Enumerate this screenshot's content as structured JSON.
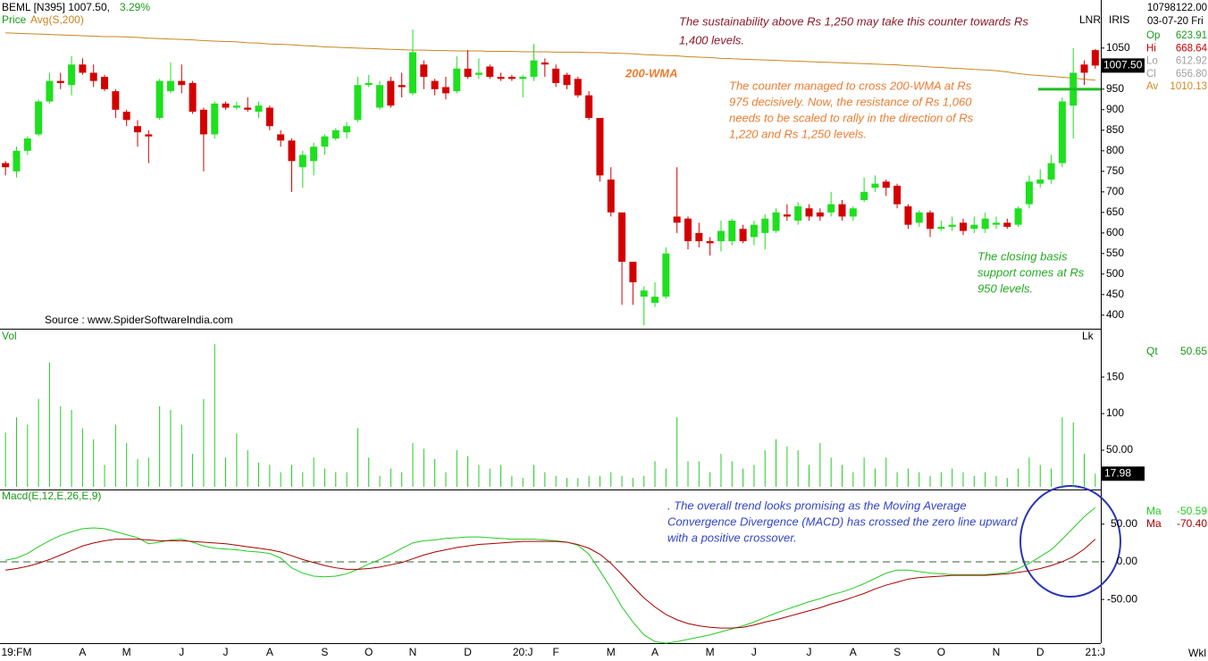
{
  "toolbar": [
    "LNR",
    "IRIS"
  ],
  "info": {
    "quantity": {
      "value": 10798122,
      "label": "10798122.00"
    },
    "date": "03-07-20 Fri",
    "fields": [
      {
        "label": "Op",
        "value": 623.91,
        "color": "#1a9a1a"
      },
      {
        "label": "Hi",
        "value": 668.64,
        "color": "#cc0000"
      },
      {
        "label": "Lo",
        "value": 612.92,
        "color": "#a0a0a0"
      },
      {
        "label": "Cl",
        "value": 656.8,
        "value_label": "656.80",
        "color": "#a0a0a0"
      },
      {
        "label": "Av",
        "value": 1010.13,
        "color": "#d08a20"
      }
    ]
  },
  "chart_data": [
    {
      "type": "candlestick",
      "title": "BEML [N395] 1007.50,",
      "change": "3.29%",
      "legend_label": "Price",
      "up_color": "#1ee01e",
      "down_color": "#d40000",
      "open": [
        770,
        750,
        800,
        840,
        920,
        970,
        960,
        1010,
        990,
        980,
        945,
        895,
        860,
        840,
        880,
        945,
        970,
        965,
        900,
        840,
        915,
        905,
        905,
        895,
        905,
        840,
        825,
        760,
        775,
        810,
        830,
        845,
        875,
        960,
        905,
        970,
        960,
        940,
        1010,
        970,
        955,
        945,
        1000,
        985,
        1005,
        980,
        980,
        975,
        980,
        1015,
        1000,
        985,
        975,
        935,
        880,
        730,
        650,
        530,
        445,
        430,
        445,
        640,
        635,
        600,
        580,
        580,
        580,
        610,
        590,
        600,
        605,
        645,
        630,
        660,
        650,
        650,
        670,
        640,
        680,
        710,
        725,
        715,
        665,
        625,
        650,
        610,
        615,
        625,
        610,
        610,
        620,
        625,
        620,
        670,
        720,
        730,
        770,
        910,
        1010,
        1045
      ],
      "high": [
        775,
        810,
        835,
        925,
        990,
        990,
        1030,
        1025,
        1010,
        985,
        950,
        900,
        875,
        850,
        975,
        1015,
        1010,
        970,
        905,
        920,
        920,
        920,
        930,
        920,
        910,
        850,
        830,
        800,
        820,
        840,
        855,
        870,
        980,
        985,
        970,
        980,
        990,
        1095,
        1020,
        975,
        980,
        1030,
        1045,
        1025,
        1010,
        990,
        985,
        985,
        1060,
        1025,
        1010,
        990,
        980,
        945,
        880,
        760,
        650,
        530,
        470,
        480,
        565,
        760,
        640,
        625,
        590,
        630,
        635,
        620,
        630,
        645,
        660,
        670,
        675,
        670,
        660,
        700,
        680,
        665,
        735,
        740,
        730,
        720,
        670,
        655,
        655,
        630,
        640,
        635,
        640,
        650,
        640,
        635,
        665,
        740,
        755,
        790,
        930,
        1050,
        1020,
        1048
      ],
      "low": [
        740,
        735,
        790,
        835,
        915,
        950,
        935,
        985,
        955,
        945,
        880,
        860,
        810,
        770,
        875,
        940,
        940,
        890,
        750,
        830,
        900,
        900,
        895,
        880,
        850,
        810,
        700,
        710,
        740,
        790,
        825,
        830,
        870,
        955,
        900,
        905,
        930,
        935,
        950,
        935,
        925,
        940,
        975,
        975,
        975,
        970,
        970,
        930,
        970,
        980,
        955,
        950,
        930,
        875,
        725,
        640,
        425,
        425,
        375,
        420,
        440,
        600,
        560,
        565,
        545,
        555,
        570,
        575,
        570,
        560,
        600,
        630,
        620,
        630,
        630,
        640,
        630,
        630,
        675,
        700,
        690,
        660,
        610,
        615,
        590,
        605,
        605,
        595,
        600,
        600,
        610,
        610,
        615,
        660,
        710,
        720,
        760,
        830,
        960,
        1000
      ],
      "close": [
        760,
        800,
        830,
        920,
        970,
        965,
        1010,
        990,
        970,
        950,
        900,
        875,
        845,
        835,
        970,
        970,
        960,
        895,
        840,
        915,
        905,
        910,
        900,
        910,
        860,
        825,
        775,
        790,
        810,
        835,
        850,
        860,
        960,
        965,
        960,
        910,
        955,
        1040,
        980,
        950,
        940,
        1000,
        980,
        990,
        980,
        975,
        975,
        980,
        1020,
        1010,
        965,
        960,
        935,
        880,
        740,
        650,
        530,
        480,
        460,
        445,
        550,
        625,
        580,
        580,
        575,
        605,
        630,
        580,
        620,
        635,
        650,
        640,
        665,
        640,
        640,
        670,
        640,
        660,
        700,
        720,
        710,
        670,
        620,
        650,
        610,
        615,
        620,
        605,
        620,
        635,
        625,
        615,
        660,
        725,
        730,
        770,
        920,
        990,
        990,
        1007.5
      ],
      "series": [
        {
          "name": "Avg(S,200)",
          "color": "#c8861e",
          "values": [
            1087,
            1086,
            1085,
            1084,
            1083,
            1082,
            1081,
            1080,
            1079,
            1078,
            1078,
            1077,
            1076,
            1074,
            1073,
            1072,
            1071,
            1070,
            1068,
            1067,
            1066,
            1065,
            1063,
            1062,
            1060,
            1059,
            1058,
            1056,
            1055,
            1053,
            1052,
            1051,
            1050,
            1049,
            1048,
            1047,
            1046,
            1045,
            1045,
            1044,
            1044,
            1043,
            1043,
            1043,
            1042,
            1042,
            1042,
            1041,
            1041,
            1041,
            1040,
            1040,
            1040,
            1039,
            1039,
            1038,
            1037,
            1036,
            1034,
            1033,
            1032,
            1031,
            1029,
            1028,
            1027,
            1025,
            1024,
            1023,
            1022,
            1021,
            1020,
            1019,
            1018,
            1017,
            1016,
            1015,
            1014,
            1013,
            1012,
            1011,
            1010,
            1009,
            1007,
            1006,
            1004,
            1003,
            1001,
            1000,
            998,
            997,
            995,
            992,
            988,
            985,
            983,
            981,
            979,
            977,
            974,
            972
          ]
        }
      ],
      "ylim": [
        367,
        1167
      ],
      "yticks": [
        400,
        450,
        500,
        550,
        600,
        650,
        700,
        750,
        800,
        850,
        900,
        950,
        1000,
        1050
      ],
      "last_price": {
        "value": 1007.5,
        "label": "1007.50"
      },
      "support_level": 950,
      "support_color": "#22bb22",
      "wma_label": "200-WMA",
      "source": "Source : www.SpiderSoftwareIndia.com",
      "annotations": [
        {
          "color": "#8b1a2a",
          "lines": [
            "The sustainability above Rs 1,250 may take this counter towards Rs",
            "1,400 levels."
          ]
        },
        {
          "color": "#ec7c30",
          "lines": [
            "The counter managed to cross 200-WMA at Rs",
            "975 decisively. Now, the resistance of Rs 1,060",
            "needs to be scaled to rally in the direction of Rs",
            "1,220 and Rs 1,250 levels."
          ]
        },
        {
          "color": "#22aa22",
          "lines": [
            "The closing basis",
            "support comes at Rs",
            "950 levels."
          ]
        }
      ]
    },
    {
      "type": "bar",
      "label": "Vol",
      "corner_label": "Lk",
      "color": "#22cc22",
      "values": [
        74,
        95,
        85,
        120,
        170,
        110,
        105,
        80,
        65,
        30,
        85,
        60,
        38,
        40,
        110,
        105,
        85,
        45,
        120,
        195,
        40,
        73,
        50,
        33,
        30,
        20,
        30,
        20,
        40,
        25,
        20,
        20,
        80,
        40,
        15,
        25,
        20,
        60,
        52,
        38,
        20,
        50,
        42,
        30,
        25,
        30,
        15,
        12,
        30,
        20,
        15,
        12,
        12,
        15,
        15,
        20,
        15,
        12,
        15,
        35,
        25,
        95,
        35,
        35,
        20,
        45,
        35,
        25,
        30,
        50,
        65,
        55,
        50,
        30,
        60,
        40,
        30,
        20,
        40,
        25,
        40,
        20,
        25,
        20,
        15,
        20,
        25,
        20,
        15,
        20,
        15,
        12,
        25,
        40,
        30,
        25,
        95,
        88,
        45,
        17.98
      ],
      "ylim": [
        0,
        216
      ],
      "yticks": [
        {
          "value": 50,
          "label": "50.00"
        },
        100,
        150
      ],
      "qt_label": "Qt",
      "qt_value": 50.65
    },
    {
      "type": "line",
      "label": "Macd(E,12,E,26,E,9)",
      "timeframe": "Wkl",
      "categories": [
        null,
        "19:FM",
        null,
        null,
        null,
        null,
        null,
        "A",
        null,
        null,
        null,
        "M",
        null,
        null,
        null,
        null,
        "J",
        null,
        null,
        null,
        "J",
        null,
        null,
        null,
        "A",
        null,
        null,
        null,
        null,
        "S",
        null,
        null,
        null,
        "O",
        null,
        null,
        null,
        "N",
        null,
        null,
        null,
        null,
        "D",
        null,
        null,
        null,
        null,
        "20:J",
        null,
        null,
        "F",
        null,
        null,
        null,
        null,
        "M",
        null,
        null,
        null,
        "A",
        null,
        null,
        null,
        null,
        "M",
        null,
        null,
        null,
        "J",
        null,
        null,
        null,
        null,
        "J",
        null,
        null,
        null,
        "A",
        null,
        null,
        null,
        "S",
        null,
        null,
        null,
        "O",
        null,
        null,
        null,
        null,
        "N",
        null,
        null,
        null,
        "D",
        null,
        null,
        null,
        null,
        "21:J"
      ],
      "series": [
        {
          "name": "Ma",
          "color": "#22cc22",
          "readout": -50.59,
          "values": [
            2,
            5,
            11,
            20,
            28,
            35,
            40,
            44,
            45,
            44,
            40,
            36,
            32,
            24,
            26,
            29,
            30,
            26,
            21,
            18,
            17,
            16,
            14,
            13,
            11,
            5,
            -8,
            -15,
            -19,
            -20,
            -19,
            -16,
            -10,
            -3,
            3,
            10,
            18,
            25,
            28,
            29,
            31,
            32,
            33,
            33,
            32,
            31,
            30,
            30,
            30,
            29,
            28,
            26,
            22,
            10,
            -12,
            -35,
            -60,
            -80,
            -97,
            -106,
            -108,
            -106,
            -103,
            -100,
            -97,
            -93,
            -89,
            -85,
            -80,
            -74,
            -68,
            -63,
            -58,
            -53,
            -49,
            -44,
            -40,
            -35,
            -29,
            -22,
            -15,
            -11,
            -11,
            -13,
            -15,
            -16,
            -17,
            -17,
            -17,
            -17,
            -16,
            -14,
            -9,
            -2,
            7,
            16,
            30,
            45,
            60,
            72
          ]
        },
        {
          "name": "Ma",
          "color": "#a80000",
          "readout": {
            "value": -70.4,
            "label": "-70.40"
          },
          "values": [
            -11,
            -9,
            -6,
            -2,
            3,
            9,
            15,
            21,
            25,
            28,
            30,
            30,
            30,
            29,
            28,
            28,
            28,
            27,
            26,
            25,
            24,
            22,
            20,
            18,
            16,
            13,
            8,
            3,
            -1,
            -5,
            -8,
            -10,
            -10,
            -9,
            -7,
            -4,
            -1,
            4,
            9,
            13,
            16,
            19,
            21,
            23,
            24,
            25,
            26,
            27,
            27,
            27,
            27,
            26,
            23,
            18,
            10,
            -2,
            -17,
            -33,
            -48,
            -60,
            -70,
            -77,
            -82,
            -85,
            -87,
            -88,
            -88,
            -87,
            -84,
            -80,
            -77,
            -73,
            -69,
            -65,
            -61,
            -56,
            -52,
            -47,
            -42,
            -36,
            -31,
            -27,
            -23,
            -21,
            -20,
            -19,
            -18,
            -18,
            -18,
            -18,
            -17,
            -16,
            -14,
            -12,
            -9,
            -5,
            0,
            7,
            17,
            30
          ]
        }
      ],
      "ylim": [
        -108,
        96
      ],
      "yticks": [
        {
          "value": -50,
          "label": "-50.00"
        },
        {
          "value": 0,
          "label": "0.00"
        },
        {
          "value": 50,
          "label": "50.00"
        }
      ],
      "zero_line": true,
      "annotation": {
        "color": "#3344cc",
        "lines": [
          ".  The overall trend looks promising as the Moving Average",
          "Convergence Divergence (MACD) has crossed the zero line upward",
          "with a positive crossover."
        ]
      }
    }
  ]
}
